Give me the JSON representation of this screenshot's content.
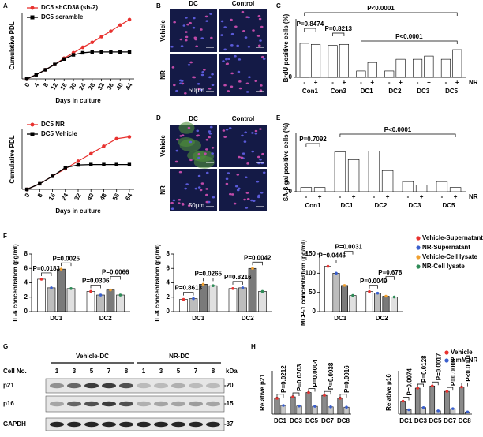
{
  "panel_labels": [
    "A",
    "B",
    "C",
    "D",
    "E",
    "F",
    "G",
    "H"
  ],
  "chart_data": [
    {
      "type": "line",
      "ylabel": "Cumulative PDL",
      "xlabel": "Days in culture",
      "x": [
        0,
        4,
        8,
        12,
        16,
        20,
        24,
        28,
        32,
        36,
        40,
        44
      ],
      "xticks": [
        0,
        4,
        8,
        12,
        16,
        20,
        24,
        28,
        32,
        36,
        40,
        44
      ],
      "xlim": [
        -2,
        46
      ],
      "ylim": [
        0,
        16
      ],
      "series": [
        {
          "name": "DC5 shCD38 (sh-2)",
          "color": "#e8322f",
          "values": [
            0,
            1,
            2.2,
            3.5,
            5,
            6.3,
            7.6,
            8.8,
            10.2,
            11.5,
            13,
            14.3
          ]
        },
        {
          "name": "DC5 scramble",
          "color": "#000000",
          "values": [
            0,
            1,
            2.2,
            3.5,
            4.8,
            5.8,
            6.3,
            6.5,
            6.5,
            6.5,
            6.5,
            6.5
          ]
        }
      ]
    },
    {
      "type": "line",
      "ylabel": "Cumulative PDL",
      "xlabel": "Days in culture",
      "x": [
        0,
        8,
        16,
        24,
        32,
        40,
        48,
        56,
        64
      ],
      "xticks": [
        0,
        8,
        16,
        24,
        32,
        40,
        48,
        56,
        64
      ],
      "xlim": [
        -3,
        67
      ],
      "ylim": [
        0,
        16
      ],
      "series": [
        {
          "name": "DC5 NR",
          "color": "#e8322f",
          "values": [
            0,
            1.5,
            3.5,
            5.5,
            7.5,
            9.5,
            11.5,
            13.5,
            14
          ]
        },
        {
          "name": "DC5 Vehicle",
          "color": "#000000",
          "values": [
            0,
            1.5,
            3.5,
            5.8,
            6.5,
            6.6,
            6.6,
            6.6,
            6.6
          ]
        }
      ]
    },
    {
      "type": "bar",
      "ylabel": "BrdU positive cells (%)",
      "categories": [
        "Con1",
        "Con3",
        "DC1",
        "DC2",
        "DC3",
        "DC5"
      ],
      "series_label": "NR",
      "series": [
        {
          "name": "-",
          "color": "#ffffff",
          "values": [
            32,
            30,
            6,
            6,
            17,
            17
          ]
        },
        {
          "name": "+",
          "color": "#ffffff",
          "values": [
            31,
            31,
            14,
            17,
            20,
            26
          ]
        }
      ],
      "ylim": [
        0,
        55
      ],
      "yticks": [
        0
      ],
      "annotations": [
        "P=0.8474",
        "P=0.8213",
        "P<0.0001",
        "P<0.0001"
      ]
    },
    {
      "type": "bar",
      "ylabel": "SA-β gal positive cells (%)",
      "categories": [
        "Con1",
        "DC1",
        "DC2",
        "DC3",
        "DC5"
      ],
      "series_label": "NR",
      "series": [
        {
          "name": "-",
          "color": "#ffffff",
          "values": [
            5,
            47,
            48,
            12,
            12
          ]
        },
        {
          "name": "+",
          "color": "#ffffff",
          "values": [
            5,
            38,
            25,
            8,
            5
          ]
        }
      ],
      "ylim": [
        0,
        70
      ],
      "yticks": [
        0
      ],
      "annotations": [
        "P=0.7092",
        "P<0.0001"
      ]
    },
    {
      "type": "bar",
      "ylabel": "IL-6 concentration (pg/ml)",
      "categories": [
        "DC1",
        "DC2"
      ],
      "series": [
        {
          "color": "#e8322f",
          "values": [
            4.5,
            2.8
          ]
        },
        {
          "color": "#3a5fcd",
          "values": [
            3.3,
            2.3
          ]
        },
        {
          "color": "#f0a030",
          "values": [
            5.9,
            3.0
          ]
        },
        {
          "color": "#2e8b57",
          "values": [
            3.2,
            2.3
          ]
        }
      ],
      "ylim": [
        0,
        8
      ],
      "yticks": [
        0,
        2,
        4,
        6,
        8
      ],
      "annotations": [
        "P=0.0183",
        "P=0.0025",
        "P=0.0306",
        "P=0.0066"
      ]
    },
    {
      "type": "bar",
      "ylabel": "IL-8 concentration (pg/ml)",
      "categories": [
        "DC1",
        "DC2"
      ],
      "series": [
        {
          "color": "#e8322f",
          "values": [
            1.7,
            3.2
          ]
        },
        {
          "color": "#3a5fcd",
          "values": [
            1.8,
            3.3
          ]
        },
        {
          "color": "#f0a030",
          "values": [
            3.8,
            6.0
          ]
        },
        {
          "color": "#2e8b57",
          "values": [
            3.6,
            2.8
          ]
        }
      ],
      "ylim": [
        0,
        8
      ],
      "yticks": [
        0,
        2,
        4,
        6,
        8
      ],
      "annotations": [
        "P=0.8613",
        "P=0.0265",
        "P=0.8216",
        "P=0.0042"
      ]
    },
    {
      "type": "bar",
      "ylabel": "MCP-1 concentration (pg/ml)",
      "categories": [
        "DC1",
        "DC2"
      ],
      "series": [
        {
          "name": "Vehicle-Supernatant",
          "color": "#e8322f",
          "values": [
            118,
            52
          ]
        },
        {
          "name": "NR-Supernatant",
          "color": "#3a5fcd",
          "values": [
            100,
            48
          ]
        },
        {
          "name": "Vehicle-Cell lysate",
          "color": "#f0a030",
          "values": [
            68,
            40
          ]
        },
        {
          "name": "NR-Cell lysate",
          "color": "#2e8b57",
          "values": [
            42,
            38
          ]
        }
      ],
      "ylim": [
        0,
        150
      ],
      "yticks": [
        0,
        50,
        100,
        150
      ],
      "annotations": [
        "P=0.0446",
        "P=0.0031",
        "P=0.0049",
        "P=0.678"
      ]
    },
    {
      "type": "bar",
      "ylabel": "Relative p21",
      "categories": [
        "DC1",
        "DC3",
        "DC5",
        "DC7",
        "DC8"
      ],
      "series": [
        {
          "color": "#e8322f",
          "values": [
            0.55,
            0.6,
            0.75,
            0.65,
            0.55
          ]
        },
        {
          "color": "#3a5fcd",
          "values": [
            0.3,
            0.28,
            0.27,
            0.25,
            0.24
          ]
        }
      ],
      "ylim": [
        0,
        1.5
      ],
      "annotations": [
        "P=0.0212",
        "P=0.0303",
        "P=0.0004",
        "P=0.0038",
        "P=0.0016"
      ]
    },
    {
      "type": "bar",
      "ylabel": "Relative p16",
      "categories": [
        "DC1",
        "DC3",
        "DC5",
        "DC7",
        "DC8"
      ],
      "series": [
        {
          "name": "Vehicle",
          "color": "#e8322f",
          "values": [
            0.6,
            1.2,
            1.3,
            1.05,
            1.25
          ]
        },
        {
          "name": "3 mM NR",
          "color": "#3a5fcd",
          "values": [
            0.2,
            0.3,
            0.15,
            0.25,
            0.1
          ]
        }
      ],
      "ylim": [
        0,
        2
      ],
      "annotations": [
        "P=0.0074",
        "P=0.0128",
        "P=0.0017",
        "P=0.0008",
        "P<0.0001"
      ]
    }
  ],
  "images": [
    {
      "columns": [
        "DC",
        "Control"
      ],
      "rows": [
        "Vehicle",
        "NR"
      ],
      "scale_bar": "50μm"
    },
    {
      "columns": [
        "DC",
        "Control"
      ],
      "rows": [
        "Vehicle",
        "NR"
      ],
      "scale_bar": "50μm"
    }
  ],
  "blot": {
    "groups": [
      "Vehicle-DC",
      "NR-DC"
    ],
    "cell_no_label": "Cell No.",
    "cell_numbers": [
      "1",
      "3",
      "5",
      "7",
      "8",
      "1",
      "3",
      "5",
      "7",
      "8"
    ],
    "kda_label": "kDa",
    "rows": [
      "p21",
      "p16",
      "GAPDH"
    ],
    "markers": [
      "-20",
      "-15",
      "-37"
    ]
  }
}
